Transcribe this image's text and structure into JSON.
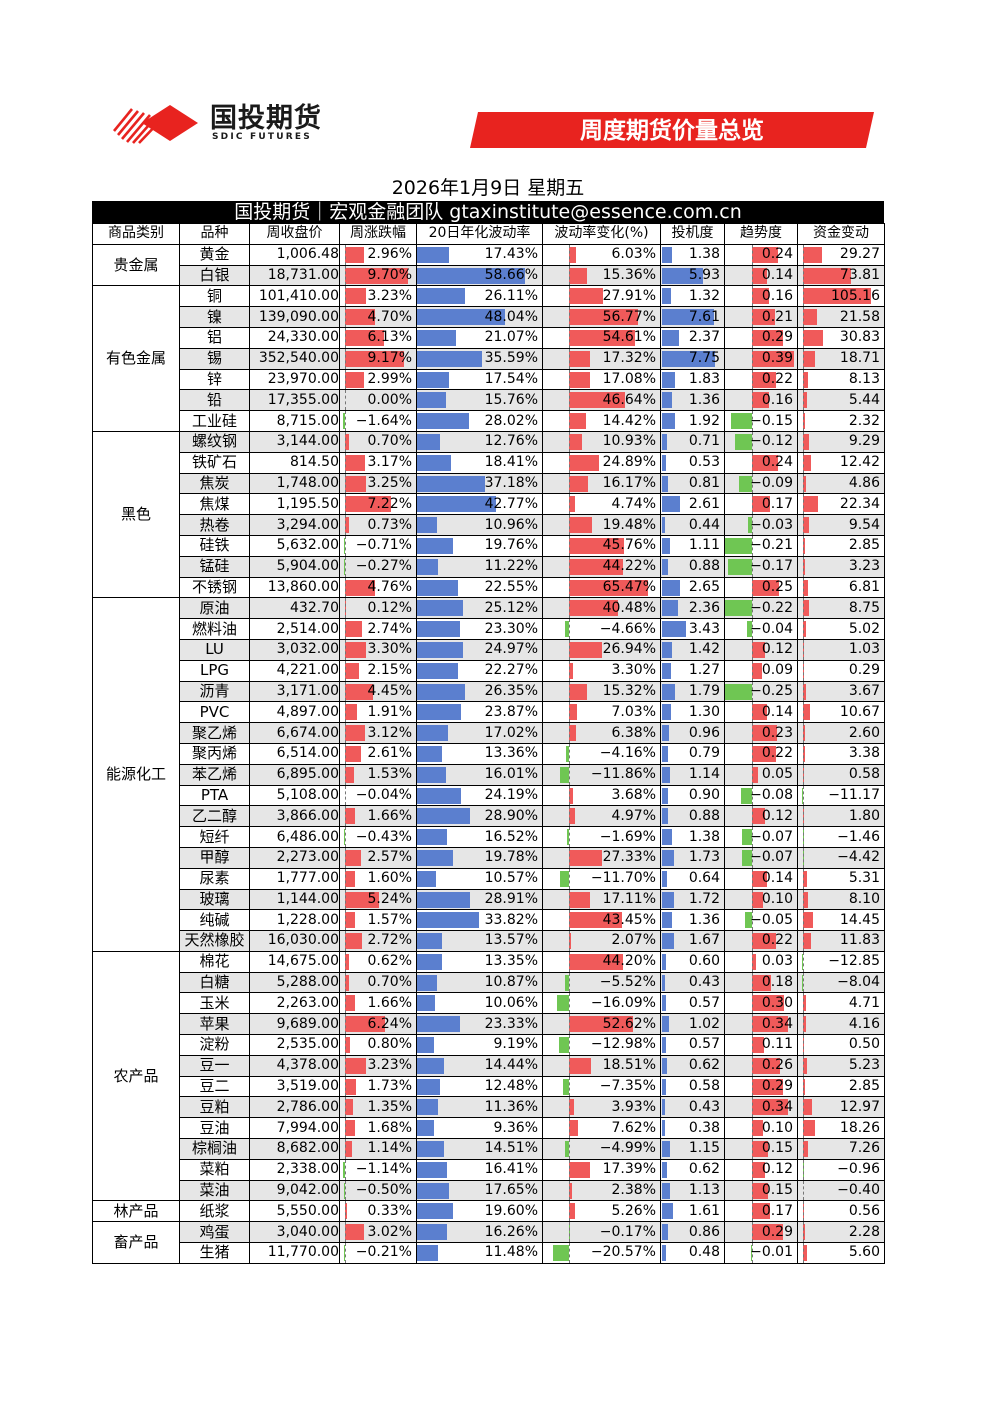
{
  "header": {
    "logo_text": "国投期货",
    "logo_sub": "SDIC FUTURES",
    "banner_title": "周度期货价量总览",
    "brand_color": "#e8231f"
  },
  "date_line": "2026年1月9日 星期五",
  "subtitle": "国投期货｜宏观金融团队 gtaxinstitute@essence.com.cn",
  "columns": [
    "商品类别",
    "品种",
    "周收盘价",
    "周涨跌幅",
    "20日年化波动率",
    "波动率变化(%)",
    "投机度",
    "趋势度",
    "资金变动"
  ],
  "bar_colors": {
    "positive": "#f05a5a",
    "negative": "#6fc653",
    "vol": "#5b7fcf",
    "spec": "#5b7fcf"
  },
  "groups": [
    {
      "category": "贵金属",
      "rows": [
        {
          "name": "黄金",
          "close": "1,006.48",
          "chg": "2.96%",
          "vol": "17.43%",
          "volchg": "6.03%",
          "spec": "1.38",
          "trend": "0.24",
          "fund": "29.27",
          "v": [
            2.96,
            17.43,
            6.03,
            1.38,
            0.24,
            29.27
          ]
        },
        {
          "name": "白银",
          "close": "18,731.00",
          "chg": "9.70%",
          "vol": "58.66%",
          "volchg": "15.36%",
          "spec": "5.93",
          "trend": "0.14",
          "fund": "73.81",
          "v": [
            9.7,
            58.66,
            15.36,
            5.93,
            0.14,
            73.81
          ]
        }
      ]
    },
    {
      "category": "有色金属",
      "rows": [
        {
          "name": "铜",
          "close": "101,410.00",
          "chg": "3.23%",
          "vol": "26.11%",
          "volchg": "27.91%",
          "spec": "1.32",
          "trend": "0.16",
          "fund": "105.16",
          "v": [
            3.23,
            26.11,
            27.91,
            1.32,
            0.16,
            105.16
          ]
        },
        {
          "name": "镍",
          "close": "139,090.00",
          "chg": "4.70%",
          "vol": "48.04%",
          "volchg": "56.77%",
          "spec": "7.61",
          "trend": "0.21",
          "fund": "21.58",
          "v": [
            4.7,
            48.04,
            56.77,
            7.61,
            0.21,
            21.58
          ]
        },
        {
          "name": "铝",
          "close": "24,330.00",
          "chg": "6.13%",
          "vol": "21.07%",
          "volchg": "54.61%",
          "spec": "2.37",
          "trend": "0.29",
          "fund": "30.83",
          "v": [
            6.13,
            21.07,
            54.61,
            2.37,
            0.29,
            30.83
          ]
        },
        {
          "name": "锡",
          "close": "352,540.00",
          "chg": "9.17%",
          "vol": "35.59%",
          "volchg": "17.32%",
          "spec": "7.75",
          "trend": "0.39",
          "fund": "18.71",
          "v": [
            9.17,
            35.59,
            17.32,
            7.75,
            0.39,
            18.71
          ]
        },
        {
          "name": "锌",
          "close": "23,970.00",
          "chg": "2.99%",
          "vol": "17.54%",
          "volchg": "17.08%",
          "spec": "1.83",
          "trend": "0.22",
          "fund": "8.13",
          "v": [
            2.99,
            17.54,
            17.08,
            1.83,
            0.22,
            8.13
          ]
        },
        {
          "name": "铅",
          "close": "17,355.00",
          "chg": "0.00%",
          "vol": "15.76%",
          "volchg": "46.64%",
          "spec": "1.36",
          "trend": "0.16",
          "fund": "5.44",
          "v": [
            0.0,
            15.76,
            46.64,
            1.36,
            0.16,
            5.44
          ]
        },
        {
          "name": "工业硅",
          "close": "8,715.00",
          "chg": "−1.64%",
          "vol": "28.02%",
          "volchg": "14.42%",
          "spec": "1.92",
          "trend": "−0.15",
          "fund": "2.32",
          "v": [
            -1.64,
            28.02,
            14.42,
            1.92,
            -0.15,
            2.32
          ]
        }
      ]
    },
    {
      "category": "黑色",
      "rows": [
        {
          "name": "螺纹钢",
          "close": "3,144.00",
          "chg": "0.70%",
          "vol": "12.76%",
          "volchg": "10.93%",
          "spec": "0.71",
          "trend": "−0.12",
          "fund": "9.29",
          "v": [
            0.7,
            12.76,
            10.93,
            0.71,
            -0.12,
            9.29
          ]
        },
        {
          "name": "铁矿石",
          "close": "814.50",
          "chg": "3.17%",
          "vol": "18.41%",
          "volchg": "24.89%",
          "spec": "0.53",
          "trend": "0.24",
          "fund": "12.42",
          "v": [
            3.17,
            18.41,
            24.89,
            0.53,
            0.24,
            12.42
          ]
        },
        {
          "name": "焦炭",
          "close": "1,748.00",
          "chg": "3.25%",
          "vol": "37.18%",
          "volchg": "16.17%",
          "spec": "0.81",
          "trend": "−0.09",
          "fund": "4.86",
          "v": [
            3.25,
            37.18,
            16.17,
            0.81,
            -0.09,
            4.86
          ]
        },
        {
          "name": "焦煤",
          "close": "1,195.50",
          "chg": "7.22%",
          "vol": "42.77%",
          "volchg": "4.74%",
          "spec": "2.61",
          "trend": "0.17",
          "fund": "22.34",
          "v": [
            7.22,
            42.77,
            4.74,
            2.61,
            0.17,
            22.34
          ]
        },
        {
          "name": "热卷",
          "close": "3,294.00",
          "chg": "0.73%",
          "vol": "10.96%",
          "volchg": "19.48%",
          "spec": "0.44",
          "trend": "−0.03",
          "fund": "9.54",
          "v": [
            0.73,
            10.96,
            19.48,
            0.44,
            -0.03,
            9.54
          ]
        },
        {
          "name": "硅铁",
          "close": "5,632.00",
          "chg": "−0.71%",
          "vol": "19.76%",
          "volchg": "45.76%",
          "spec": "1.11",
          "trend": "−0.21",
          "fund": "2.85",
          "v": [
            -0.71,
            19.76,
            45.76,
            1.11,
            -0.21,
            2.85
          ]
        },
        {
          "name": "锰硅",
          "close": "5,904.00",
          "chg": "−0.27%",
          "vol": "11.22%",
          "volchg": "44.22%",
          "spec": "0.88",
          "trend": "−0.17",
          "fund": "3.23",
          "v": [
            -0.27,
            11.22,
            44.22,
            0.88,
            -0.17,
            3.23
          ]
        },
        {
          "name": "不锈钢",
          "close": "13,860.00",
          "chg": "4.76%",
          "vol": "22.55%",
          "volchg": "65.47%",
          "spec": "2.65",
          "trend": "0.25",
          "fund": "6.81",
          "v": [
            4.76,
            22.55,
            65.47,
            2.65,
            0.25,
            6.81
          ]
        }
      ]
    },
    {
      "category": "能源化工",
      "rows": [
        {
          "name": "原油",
          "close": "432.70",
          "chg": "0.12%",
          "vol": "25.12%",
          "volchg": "40.48%",
          "spec": "2.36",
          "trend": "−0.22",
          "fund": "8.75",
          "v": [
            0.12,
            25.12,
            40.48,
            2.36,
            -0.22,
            8.75
          ]
        },
        {
          "name": "燃料油",
          "close": "2,514.00",
          "chg": "2.74%",
          "vol": "23.30%",
          "volchg": "−4.66%",
          "spec": "3.43",
          "trend": "−0.04",
          "fund": "5.02",
          "v": [
            2.74,
            23.3,
            -4.66,
            3.43,
            -0.04,
            5.02
          ]
        },
        {
          "name": "LU",
          "close": "3,032.00",
          "chg": "3.30%",
          "vol": "24.97%",
          "volchg": "26.94%",
          "spec": "1.42",
          "trend": "0.12",
          "fund": "1.03",
          "v": [
            3.3,
            24.97,
            26.94,
            1.42,
            0.12,
            1.03
          ]
        },
        {
          "name": "LPG",
          "close": "4,221.00",
          "chg": "2.15%",
          "vol": "22.27%",
          "volchg": "3.30%",
          "spec": "1.27",
          "trend": "0.09",
          "fund": "0.29",
          "v": [
            2.15,
            22.27,
            3.3,
            1.27,
            0.09,
            0.29
          ]
        },
        {
          "name": "沥青",
          "close": "3,171.00",
          "chg": "4.45%",
          "vol": "26.35%",
          "volchg": "15.32%",
          "spec": "1.79",
          "trend": "−0.25",
          "fund": "3.67",
          "v": [
            4.45,
            26.35,
            15.32,
            1.79,
            -0.25,
            3.67
          ]
        },
        {
          "name": "PVC",
          "close": "4,897.00",
          "chg": "1.91%",
          "vol": "23.87%",
          "volchg": "7.03%",
          "spec": "1.30",
          "trend": "0.14",
          "fund": "10.67",
          "v": [
            1.91,
            23.87,
            7.03,
            1.3,
            0.14,
            10.67
          ]
        },
        {
          "name": "聚乙烯",
          "close": "6,674.00",
          "chg": "3.12%",
          "vol": "17.02%",
          "volchg": "6.38%",
          "spec": "0.96",
          "trend": "0.23",
          "fund": "2.60",
          "v": [
            3.12,
            17.02,
            6.38,
            0.96,
            0.23,
            2.6
          ]
        },
        {
          "name": "聚丙烯",
          "close": "6,514.00",
          "chg": "2.61%",
          "vol": "13.36%",
          "volchg": "−4.16%",
          "spec": "0.79",
          "trend": "0.22",
          "fund": "3.38",
          "v": [
            2.61,
            13.36,
            -4.16,
            0.79,
            0.22,
            3.38
          ]
        },
        {
          "name": "苯乙烯",
          "close": "6,895.00",
          "chg": "1.53%",
          "vol": "16.01%",
          "volchg": "−11.86%",
          "spec": "1.14",
          "trend": "0.05",
          "fund": "0.58",
          "v": [
            1.53,
            16.01,
            -11.86,
            1.14,
            0.05,
            0.58
          ]
        },
        {
          "name": "PTA",
          "close": "5,108.00",
          "chg": "−0.04%",
          "vol": "24.19%",
          "volchg": "3.68%",
          "spec": "0.90",
          "trend": "−0.08",
          "fund": "−11.17",
          "v": [
            -0.04,
            24.19,
            3.68,
            0.9,
            -0.08,
            -11.17
          ]
        },
        {
          "name": "乙二醇",
          "close": "3,866.00",
          "chg": "1.66%",
          "vol": "28.90%",
          "volchg": "4.97%",
          "spec": "0.88",
          "trend": "0.12",
          "fund": "1.80",
          "v": [
            1.66,
            28.9,
            4.97,
            0.88,
            0.12,
            1.8
          ]
        },
        {
          "name": "短纤",
          "close": "6,486.00",
          "chg": "−0.43%",
          "vol": "16.52%",
          "volchg": "−1.69%",
          "spec": "1.38",
          "trend": "−0.07",
          "fund": "−1.46",
          "v": [
            -0.43,
            16.52,
            -1.69,
            1.38,
            -0.07,
            -1.46
          ]
        },
        {
          "name": "甲醇",
          "close": "2,273.00",
          "chg": "2.57%",
          "vol": "19.78%",
          "volchg": "27.33%",
          "spec": "1.73",
          "trend": "−0.07",
          "fund": "−4.42",
          "v": [
            2.57,
            19.78,
            27.33,
            1.73,
            -0.07,
            -4.42
          ]
        },
        {
          "name": "尿素",
          "close": "1,777.00",
          "chg": "1.60%",
          "vol": "10.57%",
          "volchg": "−11.70%",
          "spec": "0.64",
          "trend": "0.14",
          "fund": "5.31",
          "v": [
            1.6,
            10.57,
            -11.7,
            0.64,
            0.14,
            5.31
          ]
        },
        {
          "name": "玻璃",
          "close": "1,144.00",
          "chg": "5.24%",
          "vol": "28.91%",
          "volchg": "17.11%",
          "spec": "1.72",
          "trend": "0.10",
          "fund": "8.10",
          "v": [
            5.24,
            28.91,
            17.11,
            1.72,
            0.1,
            8.1
          ]
        },
        {
          "name": "纯碱",
          "close": "1,228.00",
          "chg": "1.57%",
          "vol": "33.82%",
          "volchg": "43.45%",
          "spec": "1.36",
          "trend": "−0.05",
          "fund": "14.45",
          "v": [
            1.57,
            33.82,
            43.45,
            1.36,
            -0.05,
            14.45
          ]
        },
        {
          "name": "天然橡胶",
          "close": "16,030.00",
          "chg": "2.72%",
          "vol": "13.57%",
          "volchg": "2.07%",
          "spec": "1.67",
          "trend": "0.22",
          "fund": "11.83",
          "v": [
            2.72,
            13.57,
            2.07,
            1.67,
            0.22,
            11.83
          ]
        }
      ]
    },
    {
      "category": "农产品",
      "rows": [
        {
          "name": "棉花",
          "close": "14,675.00",
          "chg": "0.62%",
          "vol": "13.35%",
          "volchg": "44.20%",
          "spec": "0.60",
          "trend": "0.03",
          "fund": "−12.85",
          "v": [
            0.62,
            13.35,
            44.2,
            0.6,
            0.03,
            -12.85
          ]
        },
        {
          "name": "白糖",
          "close": "5,288.00",
          "chg": "0.70%",
          "vol": "10.87%",
          "volchg": "−5.52%",
          "spec": "0.43",
          "trend": "0.18",
          "fund": "−8.04",
          "v": [
            0.7,
            10.87,
            -5.52,
            0.43,
            0.18,
            -8.04
          ]
        },
        {
          "name": "玉米",
          "close": "2,263.00",
          "chg": "1.66%",
          "vol": "10.06%",
          "volchg": "−16.09%",
          "spec": "0.57",
          "trend": "0.30",
          "fund": "4.71",
          "v": [
            1.66,
            10.06,
            -16.09,
            0.57,
            0.3,
            4.71
          ]
        },
        {
          "name": "苹果",
          "close": "9,689.00",
          "chg": "6.24%",
          "vol": "23.33%",
          "volchg": "52.62%",
          "spec": "1.02",
          "trend": "0.34",
          "fund": "4.16",
          "v": [
            6.24,
            23.33,
            52.62,
            1.02,
            0.34,
            4.16
          ]
        },
        {
          "name": "淀粉",
          "close": "2,535.00",
          "chg": "0.80%",
          "vol": "9.19%",
          "volchg": "−12.98%",
          "spec": "0.57",
          "trend": "0.11",
          "fund": "0.50",
          "v": [
            0.8,
            9.19,
            -12.98,
            0.57,
            0.11,
            0.5
          ]
        },
        {
          "name": "豆一",
          "close": "4,378.00",
          "chg": "3.23%",
          "vol": "14.44%",
          "volchg": "18.51%",
          "spec": "0.62",
          "trend": "0.26",
          "fund": "5.23",
          "v": [
            3.23,
            14.44,
            18.51,
            0.62,
            0.26,
            5.23
          ]
        },
        {
          "name": "豆二",
          "close": "3,519.00",
          "chg": "1.73%",
          "vol": "12.48%",
          "volchg": "−7.35%",
          "spec": "0.58",
          "trend": "0.29",
          "fund": "2.85",
          "v": [
            1.73,
            12.48,
            -7.35,
            0.58,
            0.29,
            2.85
          ]
        },
        {
          "name": "豆粕",
          "close": "2,786.00",
          "chg": "1.35%",
          "vol": "11.36%",
          "volchg": "3.93%",
          "spec": "0.43",
          "trend": "0.34",
          "fund": "12.97",
          "v": [
            1.35,
            11.36,
            3.93,
            0.43,
            0.34,
            12.97
          ]
        },
        {
          "name": "豆油",
          "close": "7,994.00",
          "chg": "1.68%",
          "vol": "9.36%",
          "volchg": "7.62%",
          "spec": "0.38",
          "trend": "0.10",
          "fund": "18.26",
          "v": [
            1.68,
            9.36,
            7.62,
            0.38,
            0.1,
            18.26
          ]
        },
        {
          "name": "棕榈油",
          "close": "8,682.00",
          "chg": "1.14%",
          "vol": "14.51%",
          "volchg": "−4.99%",
          "spec": "1.15",
          "trend": "0.15",
          "fund": "7.26",
          "v": [
            1.14,
            14.51,
            -4.99,
            1.15,
            0.15,
            7.26
          ]
        },
        {
          "name": "菜粕",
          "close": "2,338.00",
          "chg": "−1.14%",
          "vol": "16.41%",
          "volchg": "17.39%",
          "spec": "0.62",
          "trend": "0.12",
          "fund": "−0.96",
          "v": [
            -1.14,
            16.41,
            17.39,
            0.62,
            0.12,
            -0.96
          ]
        },
        {
          "name": "菜油",
          "close": "9,042.00",
          "chg": "−0.50%",
          "vol": "17.65%",
          "volchg": "2.38%",
          "spec": "1.13",
          "trend": "0.15",
          "fund": "−0.40",
          "v": [
            -0.5,
            17.65,
            2.38,
            1.13,
            0.15,
            -0.4
          ]
        }
      ]
    },
    {
      "category": "林产品",
      "rows": [
        {
          "name": "纸浆",
          "close": "5,550.00",
          "chg": "0.33%",
          "vol": "19.60%",
          "volchg": "5.26%",
          "spec": "1.61",
          "trend": "0.17",
          "fund": "0.56",
          "v": [
            0.33,
            19.6,
            5.26,
            1.61,
            0.17,
            0.56
          ]
        }
      ]
    },
    {
      "category": "畜产品",
      "rows": [
        {
          "name": "鸡蛋",
          "close": "3,040.00",
          "chg": "3.02%",
          "vol": "16.26%",
          "volchg": "−0.17%",
          "spec": "0.86",
          "trend": "0.29",
          "fund": "2.28",
          "v": [
            3.02,
            16.26,
            -0.17,
            0.86,
            0.29,
            2.28
          ]
        },
        {
          "name": "生猪",
          "close": "11,770.00",
          "chg": "−0.21%",
          "vol": "11.48%",
          "volchg": "−20.57%",
          "spec": "0.48",
          "trend": "−0.01",
          "fund": "5.60",
          "v": [
            -0.21,
            11.48,
            -20.57,
            0.48,
            -0.01,
            5.6
          ]
        }
      ]
    }
  ]
}
